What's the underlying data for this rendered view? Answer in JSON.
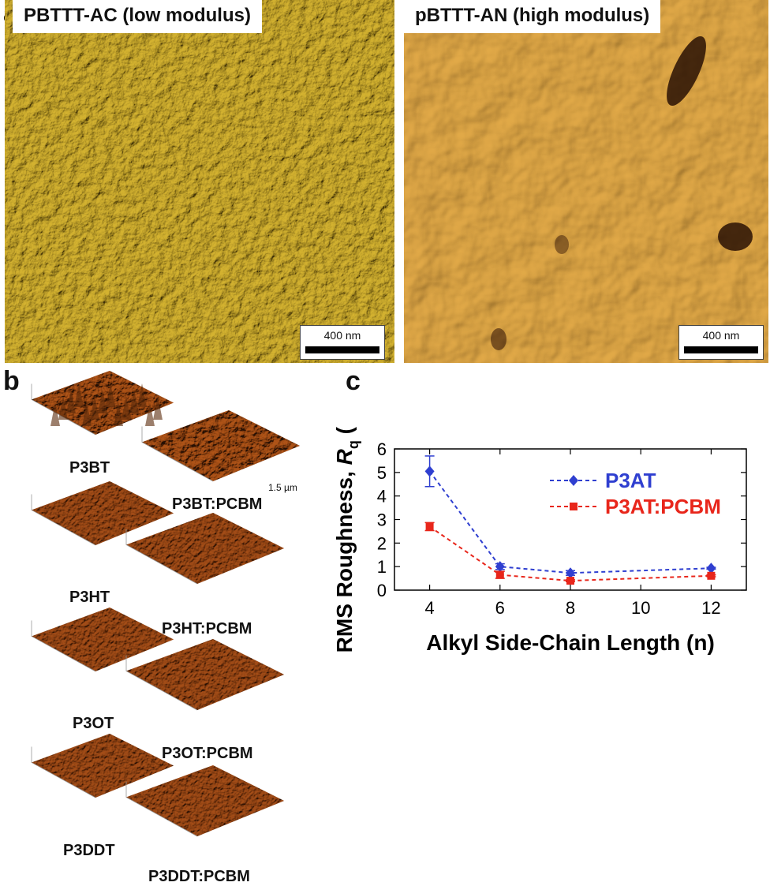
{
  "panels": {
    "a": {
      "letter": "a",
      "left_title": "PBTTT-AC (low modulus)",
      "right_title": "pBTTT-AN (high modulus)",
      "left_scalebar": "400 nm",
      "right_scalebar": "400 nm"
    },
    "b": {
      "letter": "b",
      "scale_label": "1.5 µm",
      "surfaces": [
        {
          "label": "P3BT"
        },
        {
          "label": "P3BT:PCBM"
        },
        {
          "label": "P3HT"
        },
        {
          "label": "P3HT:PCBM"
        },
        {
          "label": "P3OT"
        },
        {
          "label": "P3OT:PCBM"
        },
        {
          "label": "P3DDT"
        },
        {
          "label": "P3DDT:PCBM"
        }
      ]
    },
    "c": {
      "letter": "c"
    }
  },
  "colors": {
    "afm_gold": "#c9a32a",
    "afm_orange": "#d68a2a",
    "surf_brown": "#7a3410",
    "p3at": "#2f3fd0",
    "p3at_pcbm": "#e8261b"
  },
  "chart_data": {
    "type": "line",
    "xlabel": "Alkyl Side-Chain Length (n)",
    "ylabel_main": "RMS Roughness, ",
    "ylabel_sym": "R",
    "ylabel_sub": "q",
    "ylabel_unit": " (nm)",
    "xlim": [
      3,
      13
    ],
    "ylim": [
      0,
      6
    ],
    "xticks": [
      4,
      6,
      8,
      10,
      12
    ],
    "yticks": [
      0,
      1,
      2,
      3,
      4,
      5,
      6
    ],
    "legend_position": "top-right",
    "series": [
      {
        "name": "P3AT",
        "marker": "diamond",
        "color": "#2f3fd0",
        "x": [
          4,
          6,
          8,
          12
        ],
        "y": [
          5.05,
          1.0,
          0.73,
          0.93
        ],
        "err": [
          0.65,
          0.12,
          0.1,
          0.04
        ]
      },
      {
        "name": "P3AT:PCBM",
        "marker": "square",
        "color": "#e8261b",
        "x": [
          4,
          6,
          8,
          12
        ],
        "y": [
          2.7,
          0.65,
          0.4,
          0.61
        ],
        "err": [
          0.17,
          0.15,
          0.04,
          0.04
        ]
      }
    ]
  }
}
